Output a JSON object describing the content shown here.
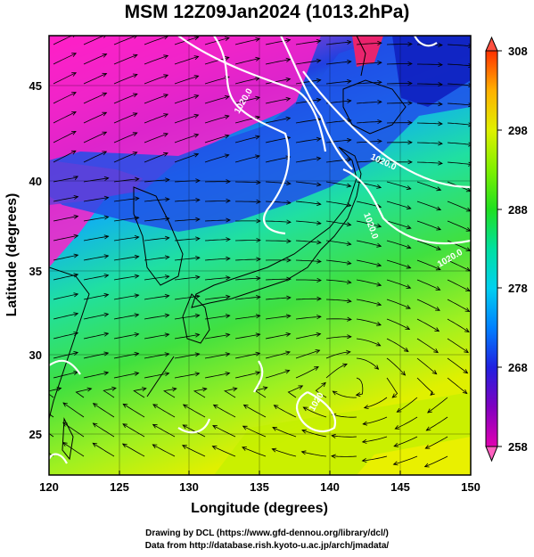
{
  "title": "MSM 12Z09Jan2024 (1013.2hPa)",
  "x_axis": {
    "label": "Longitude (degrees)",
    "ticks": [
      "120",
      "125",
      "130",
      "135",
      "140",
      "145",
      "150"
    ]
  },
  "y_axis": {
    "label": "Latitude  (degrees)",
    "ticks": [
      "25",
      "30",
      "35",
      "40",
      "45"
    ]
  },
  "colorbar": {
    "ticks": [
      "258",
      "268",
      "278",
      "288",
      "298",
      "308"
    ],
    "colors": [
      "#e000b0",
      "#8000c0",
      "#2020e0",
      "#00a0ff",
      "#00e0e0",
      "#00e060",
      "#40e000",
      "#a0f000",
      "#f0f000",
      "#ffb000",
      "#ff4000"
    ]
  },
  "isobar_labels": [
    "1020.0",
    "1020.0",
    "1020.0",
    "1020.0",
    "1020"
  ],
  "credits": {
    "line1": "Drawing by DCL (https://www.gfd-dennou.org/library/dcl/)",
    "line2": "Data from http://database.rish.kyoto-u.ac.jp/arch/jmadata/"
  }
}
